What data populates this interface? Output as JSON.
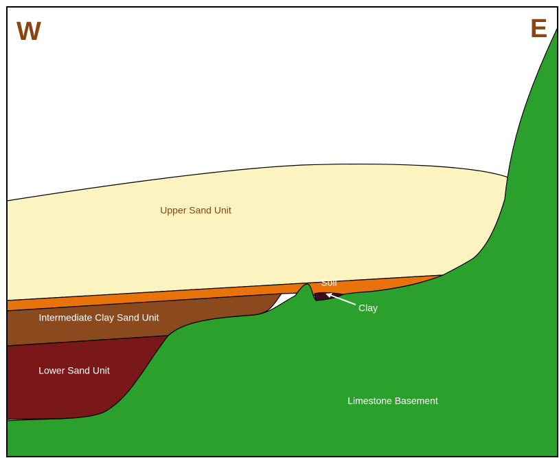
{
  "orientation": {
    "west": "W",
    "east": "E"
  },
  "layers": [
    {
      "label": "Upper Sand Unit"
    },
    {
      "label": "Soil"
    },
    {
      "label": "Clay"
    },
    {
      "label": "Intermediate Clay Sand Unit"
    },
    {
      "label": "Lower Sand Unit"
    },
    {
      "label": "Limestone Basement"
    }
  ]
}
